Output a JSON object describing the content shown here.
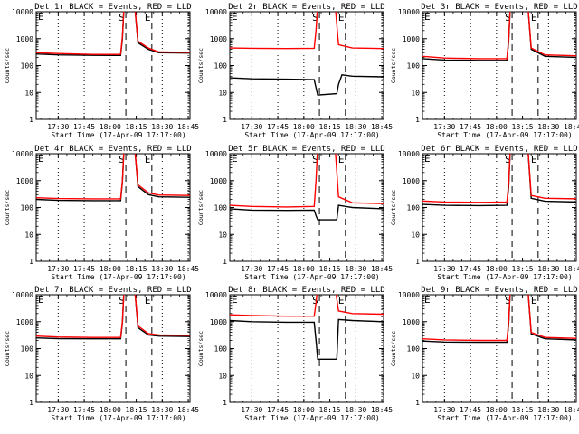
{
  "chart_data": [
    {
      "id": "det1",
      "title": "Det 1r BLACK = Events, RED = LLD",
      "xlabel": "Start Time (17-Apr-09 17:17:00)",
      "ylabel": "Counts/sec",
      "type": "line",
      "ylog": true,
      "ylim": [
        1,
        10000
      ],
      "yticks": [
        "1",
        "10",
        "100",
        "1000",
        "10000"
      ],
      "xticks": [
        "17:30",
        "17:45",
        "18:00",
        "18:15",
        "18:30",
        "18:45"
      ],
      "xlim_minutes": [
        17.3,
        106
      ],
      "marker_labels": [
        "S",
        "E"
      ],
      "series": [
        {
          "color": "#000000",
          "points": [
            [
              17.3,
              270
            ],
            [
              30,
              250
            ],
            [
              50,
              240
            ],
            [
              66,
              238
            ],
            [
              67,
              1000
            ],
            [
              68,
              20000
            ],
            [
              74,
              20000
            ],
            [
              76,
              700
            ],
            [
              82,
              400
            ],
            [
              88,
              300
            ],
            [
              106,
              290
            ]
          ]
        },
        {
          "color": "#ff0000",
          "points": [
            [
              17.3,
              300
            ],
            [
              30,
              280
            ],
            [
              50,
              260
            ],
            [
              66,
              260
            ],
            [
              67,
              1200
            ],
            [
              68,
              20000
            ],
            [
              74,
              20000
            ],
            [
              76,
              800
            ],
            [
              82,
              450
            ],
            [
              88,
              320
            ],
            [
              106,
              310
            ]
          ]
        }
      ]
    },
    {
      "id": "det2",
      "title": "Det 2r BLACK = Events, RED = LLD",
      "xlabel": "Start Time (17-Apr-09 17:17:00)",
      "ylabel": "Counts/sec",
      "type": "line",
      "ylog": true,
      "ylim": [
        1,
        10000
      ],
      "yticks": [
        "1",
        "10",
        "100",
        "1000",
        "10000"
      ],
      "xticks": [
        "17:30",
        "17:45",
        "18:00",
        "18:15",
        "18:30",
        "18:45"
      ],
      "xlim_minutes": [
        17.3,
        106
      ],
      "marker_labels": [
        "S",
        "E"
      ],
      "series": [
        {
          "color": "#000000",
          "points": [
            [
              17.3,
              35
            ],
            [
              30,
              32
            ],
            [
              50,
              31
            ],
            [
              66,
              30
            ],
            [
              67,
              15
            ],
            [
              68,
              8
            ],
            [
              79,
              9
            ],
            [
              80,
              20
            ],
            [
              82,
              45
            ],
            [
              88,
              40
            ],
            [
              106,
              38
            ]
          ]
        },
        {
          "color": "#ff0000",
          "points": [
            [
              17.3,
              450
            ],
            [
              30,
              440
            ],
            [
              50,
              430
            ],
            [
              66,
              440
            ],
            [
              67,
              2000
            ],
            [
              68,
              20000
            ],
            [
              78,
              20000
            ],
            [
              80,
              600
            ],
            [
              88,
              450
            ],
            [
              106,
              430
            ]
          ]
        }
      ]
    },
    {
      "id": "det3",
      "title": "Det 3r BLACK = Events, RED = LLD",
      "xlabel": "Start Time (17-Apr-09 17:17:00)",
      "ylabel": "Counts/sec",
      "type": "line",
      "ylog": true,
      "ylim": [
        1,
        10000
      ],
      "yticks": [
        "1",
        "10",
        "100",
        "1000",
        "10000"
      ],
      "xticks": [
        "17:30",
        "17:45",
        "18:00",
        "18:15",
        "18:30",
        "18:45"
      ],
      "xlim_minutes": [
        17.3,
        106
      ],
      "marker_labels": [
        "S",
        "E"
      ],
      "series": [
        {
          "color": "#000000",
          "points": [
            [
              17.3,
              180
            ],
            [
              30,
              160
            ],
            [
              50,
              155
            ],
            [
              66,
              155
            ],
            [
              67,
              800
            ],
            [
              68,
              20000
            ],
            [
              78,
              20000
            ],
            [
              80,
              400
            ],
            [
              88,
              220
            ],
            [
              106,
              200
            ]
          ]
        },
        {
          "color": "#ff0000",
          "points": [
            [
              17.3,
              220
            ],
            [
              30,
              190
            ],
            [
              50,
              180
            ],
            [
              66,
              180
            ],
            [
              67,
              1000
            ],
            [
              68,
              20000
            ],
            [
              78,
              20000
            ],
            [
              80,
              450
            ],
            [
              88,
              250
            ],
            [
              106,
              230
            ]
          ]
        }
      ]
    },
    {
      "id": "det4",
      "title": "Det 4r BLACK = Events, RED = LLD",
      "xlabel": "Start Time (17-Apr-09 17:17:00)",
      "ylabel": "Counts/sec",
      "type": "line",
      "ylog": true,
      "ylim": [
        1,
        10000
      ],
      "yticks": [
        "1",
        "10",
        "100",
        "1000",
        "10000"
      ],
      "xticks": [
        "17:30",
        "17:45",
        "18:00",
        "18:15",
        "18:30",
        "18:45"
      ],
      "xlim_minutes": [
        17.3,
        106
      ],
      "marker_labels": [
        "S",
        "E"
      ],
      "series": [
        {
          "color": "#000000",
          "points": [
            [
              17.3,
              200
            ],
            [
              30,
              185
            ],
            [
              50,
              180
            ],
            [
              66,
              180
            ],
            [
              67,
              900
            ],
            [
              68,
              20000
            ],
            [
              74,
              20000
            ],
            [
              76,
              600
            ],
            [
              82,
              300
            ],
            [
              88,
              250
            ],
            [
              106,
              240
            ]
          ]
        },
        {
          "color": "#ff0000",
          "points": [
            [
              17.3,
              230
            ],
            [
              30,
              215
            ],
            [
              50,
              210
            ],
            [
              66,
              210
            ],
            [
              67,
              1000
            ],
            [
              68,
              20000
            ],
            [
              74,
              20000
            ],
            [
              76,
              700
            ],
            [
              82,
              350
            ],
            [
              88,
              290
            ],
            [
              106,
              280
            ]
          ]
        }
      ]
    },
    {
      "id": "det5",
      "title": "Det 5r BLACK = Events, RED = LLD",
      "xlabel": "Start Time (17-Apr-09 17:17:00)",
      "ylabel": "Counts/sec",
      "type": "line",
      "ylog": true,
      "ylim": [
        1,
        10000
      ],
      "yticks": [
        "1",
        "10",
        "100",
        "1000",
        "10000"
      ],
      "xticks": [
        "17:30",
        "17:45",
        "18:00",
        "18:15",
        "18:30",
        "18:45"
      ],
      "xlim_minutes": [
        17.3,
        106
      ],
      "marker_labels": [
        "S",
        "E"
      ],
      "series": [
        {
          "color": "#000000",
          "points": [
            [
              17.3,
              90
            ],
            [
              30,
              80
            ],
            [
              50,
              78
            ],
            [
              66,
              80
            ],
            [
              67,
              50
            ],
            [
              68,
              35
            ],
            [
              79,
              35
            ],
            [
              80,
              120
            ],
            [
              88,
              100
            ],
            [
              106,
              90
            ]
          ]
        },
        {
          "color": "#ff0000",
          "points": [
            [
              17.3,
              120
            ],
            [
              30,
              110
            ],
            [
              50,
              105
            ],
            [
              66,
              110
            ],
            [
              67,
              1000
            ],
            [
              68,
              20000
            ],
            [
              78,
              20000
            ],
            [
              80,
              250
            ],
            [
              88,
              150
            ],
            [
              106,
              140
            ]
          ]
        }
      ]
    },
    {
      "id": "det6",
      "title": "Det 6r BLACK = Events, RED = LLD",
      "xlabel": "Start Time (17-Apr-09 17:17:00)",
      "ylabel": "Counts/sec",
      "type": "line",
      "ylog": true,
      "ylim": [
        1,
        10000
      ],
      "yticks": [
        "1",
        "10",
        "100",
        "1000",
        "10000"
      ],
      "xticks": [
        "17:30",
        "17:45",
        "18:00",
        "18:15",
        "18:30",
        "18:45"
      ],
      "xlim_minutes": [
        17.3,
        106
      ],
      "marker_labels": [
        "S",
        "E"
      ],
      "series": [
        {
          "color": "#000000",
          "points": [
            [
              17.3,
              130
            ],
            [
              30,
              120
            ],
            [
              50,
              118
            ],
            [
              66,
              120
            ],
            [
              67,
              600
            ],
            [
              68,
              20000
            ],
            [
              78,
              20000
            ],
            [
              80,
              220
            ],
            [
              88,
              170
            ],
            [
              106,
              160
            ]
          ]
        },
        {
          "color": "#ff0000",
          "points": [
            [
              17.3,
              175
            ],
            [
              30,
              160
            ],
            [
              50,
              155
            ],
            [
              66,
              160
            ],
            [
              67,
              800
            ],
            [
              68,
              20000
            ],
            [
              78,
              20000
            ],
            [
              80,
              280
            ],
            [
              88,
              220
            ],
            [
              106,
              210
            ]
          ]
        }
      ]
    },
    {
      "id": "det7",
      "title": "Det 7r BLACK = Events, RED = LLD",
      "xlabel": "Start Time (17-Apr-09 17:17:00)",
      "ylabel": "Counts/sec",
      "type": "line",
      "ylog": true,
      "ylim": [
        1,
        10000
      ],
      "yticks": [
        "1",
        "10",
        "100",
        "1000",
        "10000"
      ],
      "xticks": [
        "17:30",
        "17:45",
        "18:00",
        "18:15",
        "18:30",
        "18:45"
      ],
      "xlim_minutes": [
        17.3,
        106
      ],
      "marker_labels": [
        "S",
        "E"
      ],
      "series": [
        {
          "color": "#000000",
          "points": [
            [
              17.3,
              250
            ],
            [
              30,
              235
            ],
            [
              50,
              230
            ],
            [
              66,
              230
            ],
            [
              67,
              900
            ],
            [
              68,
              20000
            ],
            [
              74,
              20000
            ],
            [
              76,
              600
            ],
            [
              82,
              320
            ],
            [
              88,
              290
            ],
            [
              106,
              280
            ]
          ]
        },
        {
          "color": "#ff0000",
          "points": [
            [
              17.3,
              290
            ],
            [
              30,
              270
            ],
            [
              50,
              260
            ],
            [
              66,
              260
            ],
            [
              67,
              1000
            ],
            [
              68,
              20000
            ],
            [
              74,
              20000
            ],
            [
              76,
              700
            ],
            [
              82,
              360
            ],
            [
              88,
              320
            ],
            [
              106,
              310
            ]
          ]
        }
      ]
    },
    {
      "id": "det8",
      "title": "Det 8r BLACK = Events, RED = LLD",
      "xlabel": "Start Time (17-Apr-09 17:17:00)",
      "ylabel": "Counts/sec",
      "type": "line",
      "ylog": true,
      "ylim": [
        1,
        10000
      ],
      "yticks": [
        "1",
        "10",
        "100",
        "1000",
        "10000"
      ],
      "xticks": [
        "17:30",
        "17:45",
        "18:00",
        "18:15",
        "18:30",
        "18:45"
      ],
      "xlim_minutes": [
        17.3,
        106
      ],
      "marker_labels": [
        "S",
        "E"
      ],
      "series": [
        {
          "color": "#000000",
          "points": [
            [
              17.3,
              1100
            ],
            [
              30,
              1000
            ],
            [
              50,
              950
            ],
            [
              66,
              950
            ],
            [
              67,
              200
            ],
            [
              68,
              40
            ],
            [
              79,
              40
            ],
            [
              80,
              1200
            ],
            [
              88,
              1100
            ],
            [
              106,
              1000
            ]
          ]
        },
        {
          "color": "#ff0000",
          "points": [
            [
              17.3,
              1800
            ],
            [
              30,
              1700
            ],
            [
              50,
              1600
            ],
            [
              66,
              1600
            ],
            [
              67,
              5000
            ],
            [
              68,
              20000
            ],
            [
              78,
              20000
            ],
            [
              80,
              2500
            ],
            [
              88,
              2000
            ],
            [
              106,
              1900
            ]
          ]
        }
      ]
    },
    {
      "id": "det9",
      "title": "Det 9r BLACK = Events, RED = LLD",
      "xlabel": "Start Time (17-Apr-09 17:17:00)",
      "ylabel": "Counts/sec",
      "type": "line",
      "ylog": true,
      "ylim": [
        1,
        10000
      ],
      "yticks": [
        "1",
        "10",
        "100",
        "1000",
        "10000"
      ],
      "xticks": [
        "17:30",
        "17:45",
        "18:00",
        "18:15",
        "18:30",
        "18:45"
      ],
      "xlim_minutes": [
        17.3,
        106
      ],
      "marker_labels": [
        "S",
        "E"
      ],
      "series": [
        {
          "color": "#000000",
          "points": [
            [
              17.3,
              190
            ],
            [
              30,
              175
            ],
            [
              50,
              170
            ],
            [
              66,
              170
            ],
            [
              67,
              800
            ],
            [
              68,
              20000
            ],
            [
              78,
              20000
            ],
            [
              80,
              350
            ],
            [
              88,
              230
            ],
            [
              106,
              210
            ]
          ]
        },
        {
          "color": "#ff0000",
          "points": [
            [
              17.3,
              230
            ],
            [
              30,
              210
            ],
            [
              50,
              200
            ],
            [
              66,
              200
            ],
            [
              67,
              1000
            ],
            [
              68,
              20000
            ],
            [
              78,
              20000
            ],
            [
              80,
              400
            ],
            [
              88,
              260
            ],
            [
              106,
              240
            ]
          ]
        }
      ]
    }
  ],
  "dotted_lines_minutes": [
    30,
    45,
    60,
    90,
    105
  ],
  "dashed_lines_minutes": [
    69,
    84
  ]
}
